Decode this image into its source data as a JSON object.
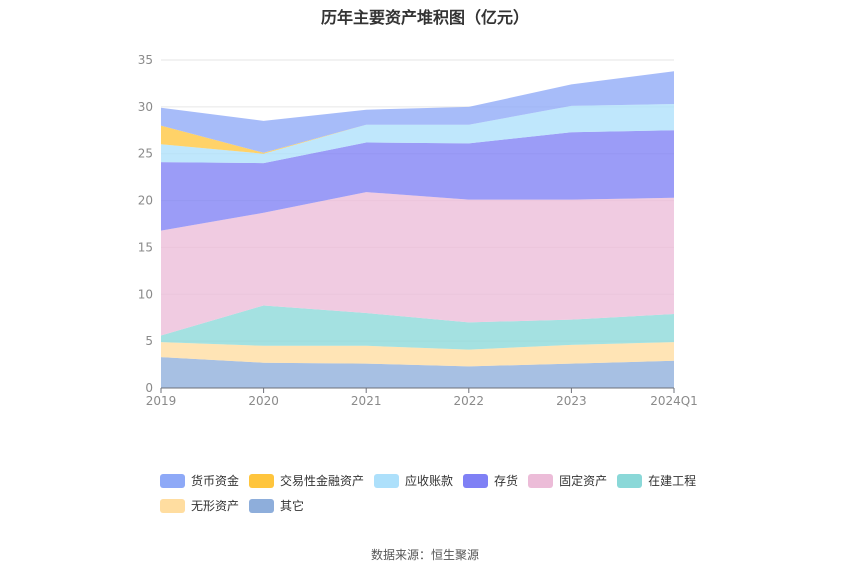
{
  "chart_data": {
    "type": "area",
    "stacked": true,
    "title": "历年主要资产堆积图（亿元）",
    "categories": [
      "2019",
      "2020",
      "2021",
      "2022",
      "2023",
      "2024Q1"
    ],
    "ylim": [
      0,
      35
    ],
    "yticks": [
      0,
      5,
      10,
      15,
      20,
      25,
      30,
      35
    ],
    "grid": true,
    "legend_position": "bottom",
    "series": [
      {
        "name": "其它",
        "color": "#8eaedb",
        "values": [
          3.3,
          2.7,
          2.6,
          2.3,
          2.6,
          2.9
        ]
      },
      {
        "name": "无形资产",
        "color": "#ffdda0",
        "values": [
          1.6,
          1.8,
          1.9,
          1.8,
          2.0,
          2.0
        ]
      },
      {
        "name": "在建工程",
        "color": "#8ad8d8",
        "values": [
          0.7,
          4.3,
          3.5,
          2.9,
          2.7,
          3.0
        ]
      },
      {
        "name": "固定资产",
        "color": "#ecbcd8",
        "values": [
          11.2,
          9.9,
          12.9,
          13.1,
          12.8,
          12.4
        ]
      },
      {
        "name": "存货",
        "color": "#7f80f5",
        "values": [
          7.3,
          5.3,
          5.3,
          6.0,
          7.2,
          7.2
        ]
      },
      {
        "name": "应收账款",
        "color": "#ade0fb",
        "values": [
          1.9,
          1.0,
          1.9,
          2.0,
          2.8,
          2.8
        ]
      },
      {
        "name": "交易性金融资产",
        "color": "#ffc53d",
        "values": [
          2.0,
          0.1,
          0.0,
          0.0,
          0.0,
          0.0
        ]
      },
      {
        "name": "货币资金",
        "color": "#8ea9f7",
        "values": [
          1.9,
          3.4,
          1.6,
          1.9,
          2.3,
          3.5
        ]
      }
    ]
  },
  "legend_order": [
    "货币资金",
    "交易性金融资产",
    "应收账款",
    "存货",
    "固定资产",
    "在建工程",
    "无形资产",
    "其它"
  ],
  "source": "数据来源：恒生聚源"
}
